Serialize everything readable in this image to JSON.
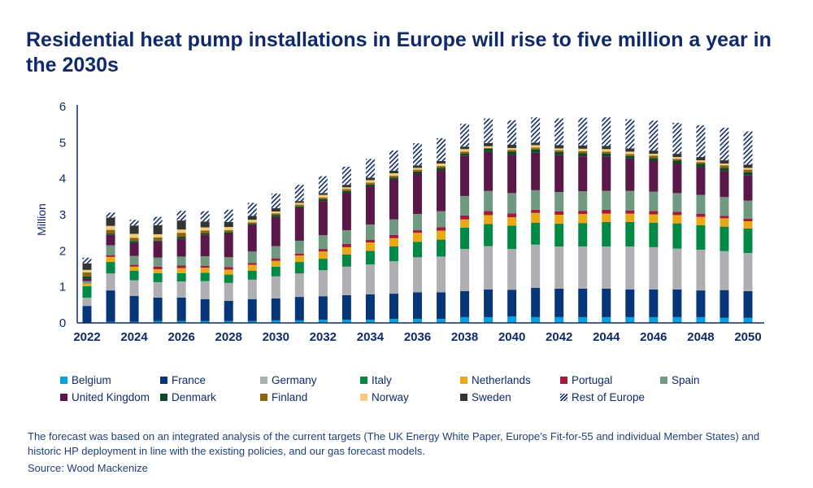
{
  "title": "Residential heat pump installations in Europe will rise to five million a year in the 2030s",
  "footnote": "The forecast was based on an integrated analysis of the current targets (The UK Energy White Paper, Europe’s Fit-for-55 and individual Member States) and historic HP deployment in line with the existing policies, and our gas forecast models.",
  "source": "Source: Wood Mackenize",
  "chart_data": {
    "type": "bar",
    "stacked": true,
    "ylabel": "Million",
    "xlabel": "",
    "ylim": [
      0,
      6
    ],
    "yticks": [
      "0",
      "1",
      "2",
      "3",
      "4",
      "5",
      "6"
    ],
    "xtick_labels": [
      "2022",
      "2024",
      "2026",
      "2028",
      "2030",
      "2032",
      "2034",
      "2036",
      "2038",
      "2040",
      "2042",
      "2044",
      "2046",
      "2048",
      "2050"
    ],
    "grid": false,
    "legend_position": "bottom",
    "categories": [
      "2022",
      "2023",
      "2024",
      "2025",
      "2026",
      "2027",
      "2028",
      "2029",
      "2030",
      "2031",
      "2032",
      "2033",
      "2034",
      "2035",
      "2036",
      "2037",
      "2038",
      "2039",
      "2040",
      "2041",
      "2042",
      "2043",
      "2044",
      "2045",
      "2046",
      "2047",
      "2048",
      "2049",
      "2050"
    ],
    "series": [
      {
        "name": "Belgium",
        "color": "#00a3e0",
        "values": [
          0,
          0.03,
          0.03,
          0.05,
          0.05,
          0.05,
          0.05,
          0.05,
          0.07,
          0.07,
          0.09,
          0.09,
          0.09,
          0.11,
          0.11,
          0.11,
          0.16,
          0.16,
          0.18,
          0.16,
          0.16,
          0.16,
          0.16,
          0.16,
          0.16,
          0.16,
          0.16,
          0.14,
          0.14
        ]
      },
      {
        "name": "France",
        "color": "#06357a",
        "values": [
          0.47,
          0.87,
          0.72,
          0.65,
          0.65,
          0.61,
          0.56,
          0.61,
          0.61,
          0.65,
          0.65,
          0.68,
          0.7,
          0.7,
          0.74,
          0.74,
          0.72,
          0.77,
          0.74,
          0.81,
          0.79,
          0.79,
          0.79,
          0.77,
          0.77,
          0.77,
          0.74,
          0.77,
          0.74
        ]
      },
      {
        "name": "Germany",
        "color": "#aeafb2",
        "values": [
          0.23,
          0.47,
          0.43,
          0.43,
          0.45,
          0.5,
          0.5,
          0.54,
          0.61,
          0.65,
          0.72,
          0.79,
          0.83,
          0.9,
          0.97,
          0.99,
          1.17,
          1.2,
          1.13,
          1.2,
          1.17,
          1.17,
          1.17,
          1.19,
          1.17,
          1.13,
          1.13,
          1.08,
          1.06
        ]
      },
      {
        "name": "Italy",
        "color": "#008845",
        "values": [
          0.32,
          0.32,
          0.27,
          0.25,
          0.23,
          0.23,
          0.23,
          0.25,
          0.27,
          0.32,
          0.32,
          0.34,
          0.38,
          0.41,
          0.43,
          0.47,
          0.59,
          0.61,
          0.65,
          0.61,
          0.63,
          0.65,
          0.68,
          0.68,
          0.68,
          0.7,
          0.68,
          0.68,
          0.68
        ]
      },
      {
        "name": "Netherlands",
        "color": "#eaa814",
        "values": [
          0.07,
          0.14,
          0.11,
          0.11,
          0.14,
          0.14,
          0.14,
          0.16,
          0.16,
          0.18,
          0.2,
          0.2,
          0.23,
          0.23,
          0.25,
          0.25,
          0.23,
          0.25,
          0.23,
          0.27,
          0.25,
          0.25,
          0.23,
          0.23,
          0.23,
          0.23,
          0.23,
          0.23,
          0.2
        ]
      },
      {
        "name": "Portugal",
        "color": "#a6193c",
        "values": [
          0.01,
          0.05,
          0.05,
          0.07,
          0.07,
          0.05,
          0.07,
          0.05,
          0.07,
          0.05,
          0.07,
          0.09,
          0.07,
          0.09,
          0.07,
          0.09,
          0.11,
          0.11,
          0.11,
          0.09,
          0.09,
          0.09,
          0.11,
          0.09,
          0.09,
          0.09,
          0.09,
          0.07,
          0.07
        ]
      },
      {
        "name": "Spain",
        "color": "#6f9a7f",
        "values": [
          0.06,
          0.27,
          0.25,
          0.25,
          0.25,
          0.27,
          0.27,
          0.32,
          0.34,
          0.36,
          0.38,
          0.38,
          0.43,
          0.43,
          0.45,
          0.45,
          0.54,
          0.56,
          0.56,
          0.54,
          0.54,
          0.54,
          0.52,
          0.54,
          0.54,
          0.52,
          0.52,
          0.52,
          0.5
        ]
      },
      {
        "name": "United Kingdom",
        "color": "#5a1848",
        "values": [
          0.06,
          0.29,
          0.36,
          0.45,
          0.5,
          0.59,
          0.65,
          0.74,
          0.81,
          0.9,
          0.95,
          1.04,
          1.06,
          1.11,
          1.13,
          1.13,
          1.11,
          1.08,
          1.06,
          1.04,
          1.02,
          0.97,
          0.95,
          0.9,
          0.86,
          0.81,
          0.77,
          0.72,
          0.7
        ]
      },
      {
        "name": "Denmark",
        "color": "#0d4a2a",
        "values": [
          0.07,
          0.03,
          0.05,
          0.02,
          0.05,
          0.05,
          0.05,
          0.03,
          0.05,
          0.05,
          0.05,
          0.05,
          0.05,
          0.05,
          0.05,
          0.07,
          0.07,
          0.09,
          0.09,
          0.09,
          0.09,
          0.09,
          0.09,
          0.07,
          0.07,
          0.09,
          0.09,
          0.09,
          0.09
        ]
      },
      {
        "name": "Finland",
        "color": "#8c6410",
        "values": [
          0.11,
          0.11,
          0.09,
          0.09,
          0.11,
          0.07,
          0.05,
          0.04,
          0.05,
          0.05,
          0.05,
          0.05,
          0.05,
          0.05,
          0.05,
          0.05,
          0.05,
          0.02,
          0.05,
          0.05,
          0.05,
          0.05,
          0.05,
          0.05,
          0.07,
          0.05,
          0.05,
          0.07,
          0.07
        ]
      },
      {
        "name": "Norway",
        "color": "#f2cc7a",
        "values": [
          0.07,
          0.11,
          0.11,
          0.09,
          0.09,
          0.09,
          0.09,
          0.07,
          0.05,
          0.05,
          0.07,
          0.05,
          0.07,
          0.07,
          0.05,
          0.07,
          0.07,
          0.05,
          0.05,
          0.07,
          0.05,
          0.07,
          0.07,
          0.07,
          0.05,
          0.05,
          0.05,
          0.05,
          0.05
        ]
      },
      {
        "name": "Sweden",
        "color": "#323436",
        "values": [
          0.18,
          0.23,
          0.23,
          0.25,
          0.25,
          0.16,
          0.14,
          0.11,
          0.09,
          0.05,
          0.05,
          0.07,
          0.07,
          0.07,
          0.07,
          0.07,
          0.07,
          0.09,
          0.09,
          0.07,
          0.09,
          0.09,
          0.09,
          0.09,
          0.09,
          0.09,
          0.09,
          0.09,
          0.09
        ]
      },
      {
        "name": "Rest of Europe",
        "color": "#0f2a6b",
        "hatched": true,
        "values": [
          0.16,
          0.14,
          0.16,
          0.23,
          0.27,
          0.29,
          0.34,
          0.36,
          0.41,
          0.45,
          0.47,
          0.5,
          0.52,
          0.56,
          0.61,
          0.63,
          0.63,
          0.68,
          0.68,
          0.7,
          0.74,
          0.77,
          0.79,
          0.81,
          0.83,
          0.86,
          0.88,
          0.9,
          0.92
        ]
      }
    ]
  }
}
